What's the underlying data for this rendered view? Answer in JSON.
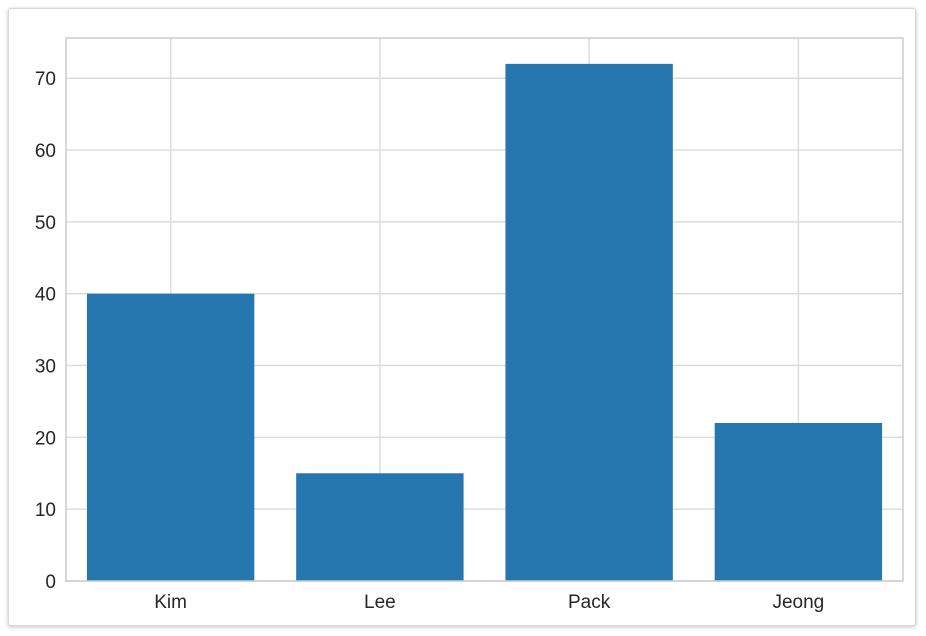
{
  "chart_data": {
    "type": "bar",
    "categories": [
      "Kim",
      "Lee",
      "Pack",
      "Jeong"
    ],
    "values": [
      40,
      15,
      72,
      22
    ],
    "ylim": [
      0,
      75.6
    ],
    "yticks": [
      0,
      10,
      20,
      30,
      40,
      50,
      60,
      70
    ],
    "grid": true,
    "title": "",
    "xlabel": "",
    "ylabel": "",
    "colors": {
      "bar": "#2677b0",
      "grid": "#dddddd",
      "axis": "#cccccc",
      "text": "#262626"
    }
  }
}
